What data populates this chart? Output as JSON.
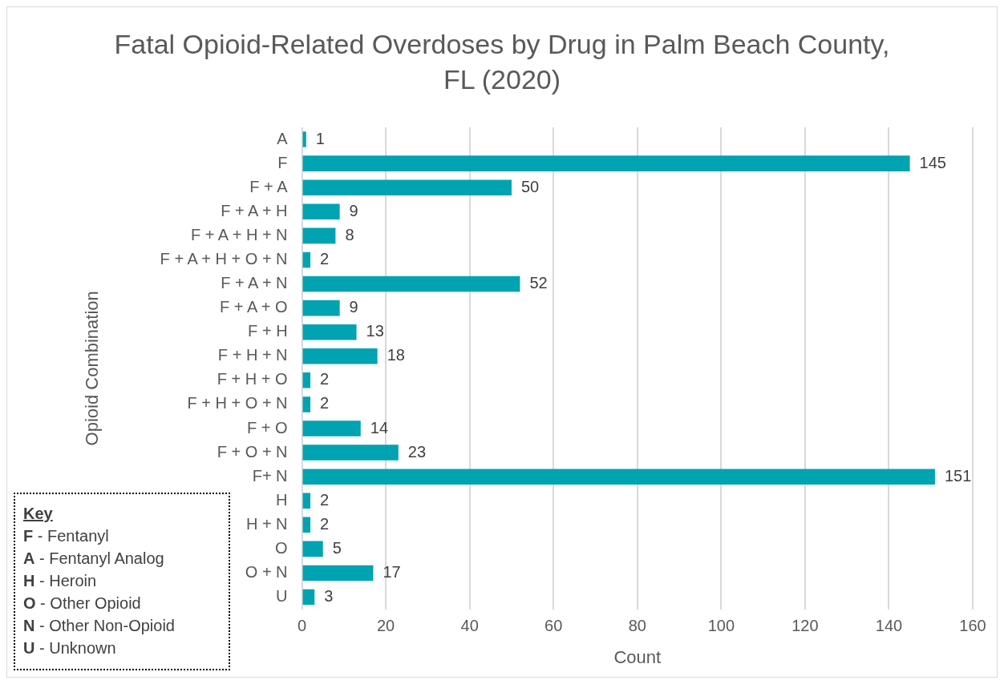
{
  "chart_data": {
    "type": "bar",
    "orientation": "horizontal",
    "title": "Fatal Opioid-Related Overdoses by Drug in Palm Beach County, FL (2020)",
    "xlabel": "Count",
    "ylabel": "Opioid Combination",
    "categories": [
      "A",
      "F",
      "F + A",
      "F + A + H",
      "F + A + H + N",
      "F + A + H + O + N",
      "F + A + N",
      "F + A + O",
      "F + H",
      "F + H + N",
      "F + H + O",
      "F + H + O + N",
      "F + O",
      "F + O + N",
      "F+ N",
      "H",
      "H + N",
      "O",
      "O + N",
      "U"
    ],
    "values": [
      1,
      145,
      50,
      9,
      8,
      2,
      52,
      9,
      13,
      18,
      2,
      2,
      14,
      23,
      151,
      2,
      2,
      5,
      17,
      3
    ],
    "color": "#00a3b1",
    "xlim": [
      0,
      160
    ],
    "xticks": [
      0,
      20,
      40,
      60,
      80,
      100,
      120,
      140,
      160
    ],
    "grid": "x",
    "data_labels": true,
    "annotations": [
      "Key",
      "F -  Fentanyl",
      "A - Fentanyl Analog",
      "H - Heroin",
      "O - Other Opioid",
      "N - Other Non-Opioid",
      "U - Unknown"
    ]
  }
}
